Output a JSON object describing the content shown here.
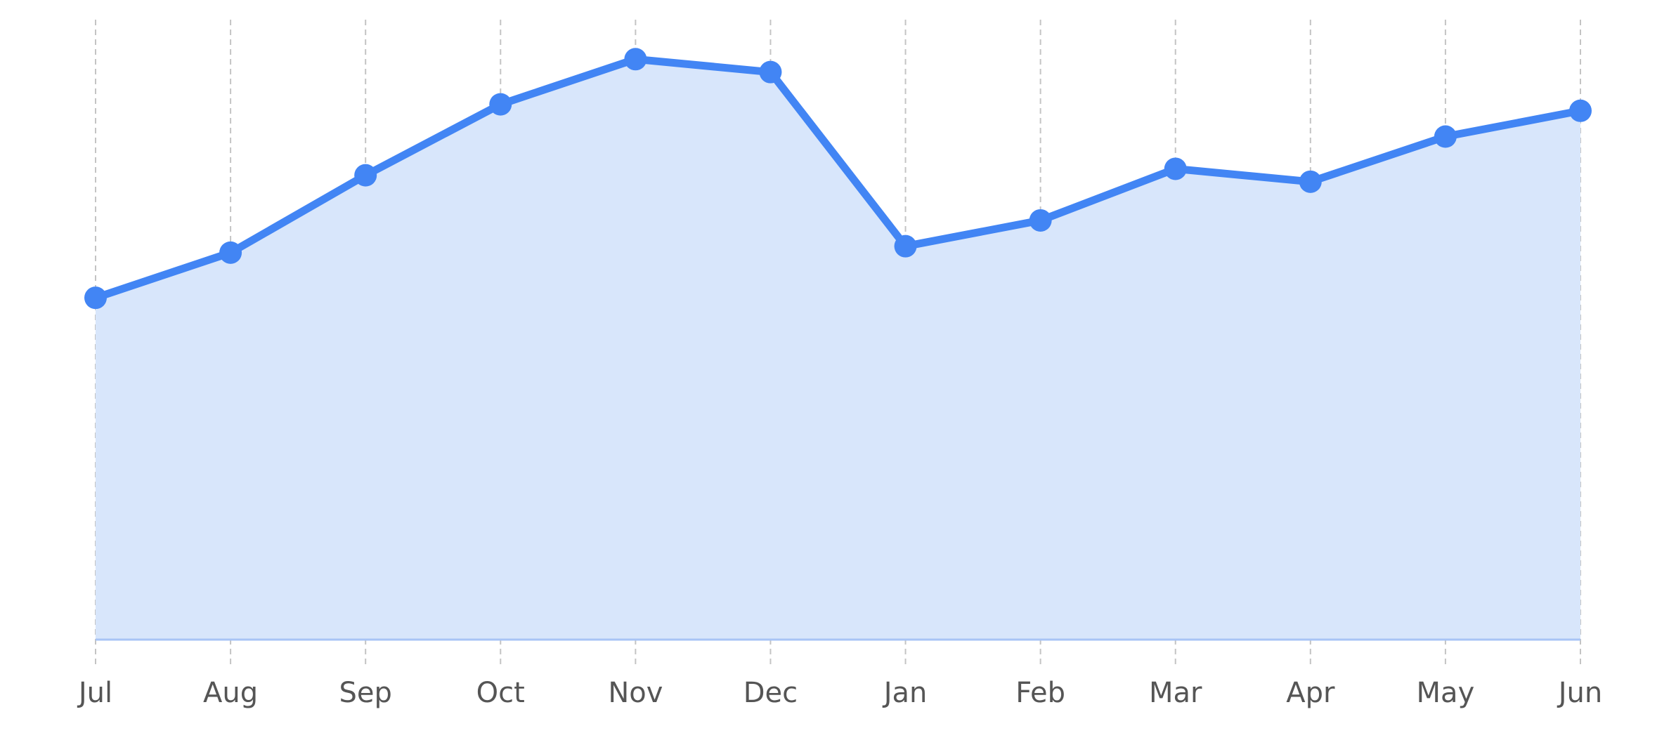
{
  "chart_data": {
    "type": "area",
    "title": "",
    "xlabel": "",
    "ylabel": "",
    "categories": [
      "Jul",
      "Aug",
      "Sep",
      "Oct",
      "Nov",
      "Dec",
      "Jan",
      "Feb",
      "Mar",
      "Apr",
      "May",
      "Jun"
    ],
    "series": [
      {
        "values": [
          53,
          60,
          72,
          83,
          90,
          88,
          61,
          65,
          73,
          71,
          78,
          82
        ]
      }
    ],
    "ylim": [
      0,
      97
    ],
    "grid": "vertical dashed",
    "y_axis_visible": false,
    "legend": "none"
  },
  "colors": {
    "line": "#4285f4",
    "fill": "#d8e6fb",
    "baseline": "#a8c4f5",
    "grid": "#c4c4c4",
    "tick_label": "#555555"
  }
}
